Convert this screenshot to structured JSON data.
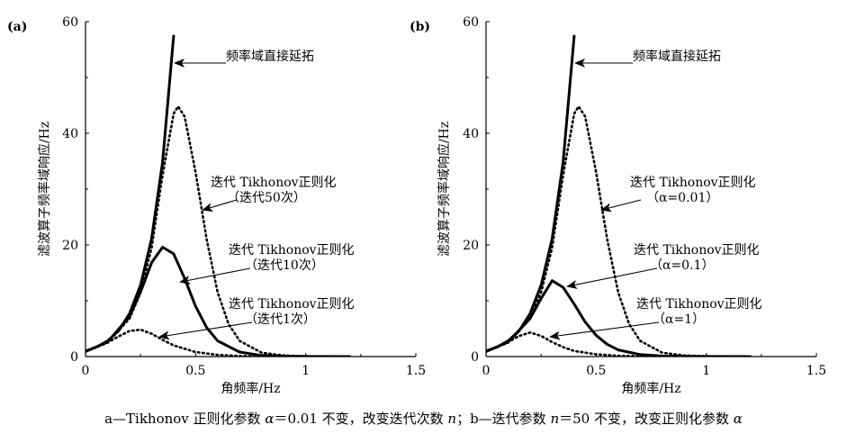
{
  "chart_data": [
    {
      "type": "line",
      "panel_label": "(a)",
      "xlabel": "角频率/Hz",
      "ylabel": "滤波算子频率域响应/Hz",
      "xlim": [
        0,
        1.5
      ],
      "ylim": [
        0,
        60
      ],
      "xticks": [
        "0",
        "0.5",
        "1",
        "1.5"
      ],
      "yticks": [
        "0",
        "20",
        "40",
        "60"
      ],
      "grid": false,
      "series": [
        {
          "name": "频率域直接延拓",
          "style": "solid-thick",
          "x": [
            0,
            0.05,
            0.1,
            0.15,
            0.2,
            0.25,
            0.3,
            0.35,
            0.4
          ],
          "y": [
            1.0,
            1.7,
            2.8,
            4.6,
            7.7,
            12.8,
            21.1,
            34.8,
            57.4
          ]
        },
        {
          "name": "迭代 Tikhonov正则化（迭代50次）",
          "style": "dotted",
          "x": [
            0,
            0.1,
            0.2,
            0.25,
            0.3,
            0.35,
            0.4,
            0.42,
            0.45,
            0.5,
            0.55,
            0.6,
            0.65,
            0.7,
            0.8,
            0.9,
            1.0,
            1.1
          ],
          "y": [
            0.9,
            2.5,
            6.8,
            11.5,
            19.5,
            32.5,
            43.5,
            44.8,
            43.0,
            33.0,
            21.0,
            11.5,
            5.8,
            2.8,
            0.7,
            0.2,
            0.05,
            0
          ]
        },
        {
          "name": "迭代 Tikhonov正则化（迭代10次）",
          "style": "solid-thick",
          "x": [
            0,
            0.1,
            0.2,
            0.25,
            0.3,
            0.35,
            0.4,
            0.45,
            0.5,
            0.55,
            0.6,
            0.7,
            0.8,
            0.9,
            1.0,
            1.2
          ],
          "y": [
            0.9,
            2.6,
            7.2,
            11.6,
            16.8,
            19.6,
            18.4,
            14.0,
            9.0,
            5.2,
            2.8,
            0.8,
            0.2,
            0.06,
            0.02,
            0
          ]
        },
        {
          "name": "迭代 Tikhonov正则化（迭代1次）",
          "style": "dotted",
          "x": [
            0,
            0.1,
            0.15,
            0.2,
            0.25,
            0.3,
            0.35,
            0.4,
            0.5,
            0.6,
            0.7,
            0.8,
            1.0
          ],
          "y": [
            0.9,
            2.5,
            3.6,
            4.6,
            4.8,
            4.1,
            3.0,
            2.0,
            0.8,
            0.3,
            0.1,
            0.03,
            0
          ]
        }
      ],
      "annotations": [
        {
          "lines": [
            "频率域直接延拓"
          ]
        },
        {
          "lines": [
            "迭代 Tikhonov正则化",
            "（迭代50次）"
          ]
        },
        {
          "lines": [
            "迭代 Tikhonov正则化",
            "（迭代10次）"
          ]
        },
        {
          "lines": [
            "迭代 Tikhonov正则化",
            "（迭代1次）"
          ]
        }
      ]
    },
    {
      "type": "line",
      "panel_label": "(b)",
      "xlabel": "角频率/Hz",
      "ylabel": "滤波算子频率域响应/Hz",
      "xlim": [
        0,
        1.5
      ],
      "ylim": [
        0,
        60
      ],
      "xticks": [
        "0",
        "0.5",
        "1",
        "1.5"
      ],
      "yticks": [
        "0",
        "20",
        "40",
        "60"
      ],
      "grid": false,
      "series": [
        {
          "name": "频率域直接延拓",
          "style": "solid-thick",
          "x": [
            0,
            0.05,
            0.1,
            0.15,
            0.2,
            0.25,
            0.3,
            0.35,
            0.4
          ],
          "y": [
            1.0,
            1.7,
            2.8,
            4.6,
            7.7,
            12.8,
            21.1,
            34.8,
            57.4
          ]
        },
        {
          "name": "迭代 Tikhonov正则化（α=0.01）",
          "style": "dotted",
          "x": [
            0,
            0.1,
            0.2,
            0.25,
            0.3,
            0.35,
            0.4,
            0.42,
            0.45,
            0.5,
            0.55,
            0.6,
            0.65,
            0.7,
            0.8,
            0.9,
            1.0,
            1.1
          ],
          "y": [
            0.9,
            2.5,
            6.8,
            11.5,
            19.5,
            32.5,
            43.5,
            44.8,
            43.0,
            33.0,
            21.0,
            11.5,
            5.8,
            2.8,
            0.7,
            0.2,
            0.05,
            0
          ]
        },
        {
          "name": "迭代 Tikhonov正则化（α=0.1）",
          "style": "solid-thick",
          "x": [
            0,
            0.1,
            0.2,
            0.25,
            0.3,
            0.35,
            0.4,
            0.45,
            0.5,
            0.55,
            0.6,
            0.7,
            0.8,
            0.9,
            1.0,
            1.2
          ],
          "y": [
            0.9,
            2.6,
            6.8,
            10.4,
            13.6,
            12.4,
            9.4,
            6.2,
            3.8,
            2.2,
            1.2,
            0.35,
            0.1,
            0.03,
            0.01,
            0
          ]
        },
        {
          "name": "迭代 Tikhonov正则化（α=1）",
          "style": "dotted",
          "x": [
            0,
            0.1,
            0.15,
            0.2,
            0.25,
            0.3,
            0.35,
            0.4,
            0.5,
            0.6,
            0.7,
            0.8,
            1.0
          ],
          "y": [
            0.9,
            2.6,
            3.7,
            4.3,
            3.7,
            2.6,
            1.7,
            1.0,
            0.4,
            0.15,
            0.05,
            0.02,
            0
          ]
        }
      ],
      "annotations": [
        {
          "lines": [
            "频率域直接延拓"
          ]
        },
        {
          "lines": [
            "迭代 Tikhonov正则化",
            "（α=0.01）"
          ]
        },
        {
          "lines": [
            "迭代 Tikhonov正则化",
            "（α=0.1）"
          ]
        },
        {
          "lines": [
            "迭代 Tikhonov正则化",
            "（α=1）"
          ]
        }
      ]
    }
  ],
  "caption": {
    "part1": "a—Tikhonov 正则化参数 ",
    "alpha": "α",
    "part2": "＝0.01 不变，改变迭代次数 ",
    "n1": "n",
    "part3": "；b—迭代参数 ",
    "n2": "n",
    "part4": "＝50 不变，改变正则化参数 ",
    "alpha2": "α"
  }
}
